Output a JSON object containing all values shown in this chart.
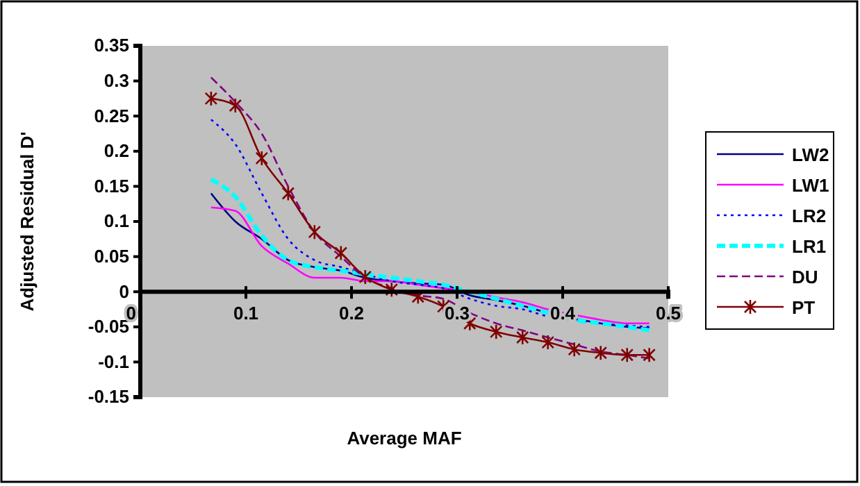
{
  "chart_data": {
    "type": "line",
    "xlabel": "Average MAF",
    "ylabel": "Adjusted Residual D'",
    "x": [
      0.067,
      0.09,
      0.115,
      0.14,
      0.165,
      0.19,
      0.213,
      0.238,
      0.263,
      0.287,
      0.312,
      0.337,
      0.362,
      0.386,
      0.411,
      0.436,
      0.461,
      0.482
    ],
    "xlim": [
      0,
      0.5
    ],
    "xticks": [
      0,
      0.1,
      0.2,
      0.3,
      0.4,
      0.5
    ],
    "ylim": [
      -0.15,
      0.35
    ],
    "yticks": [
      -0.15,
      -0.1,
      -0.05,
      0,
      0.05,
      0.1,
      0.15,
      0.2,
      0.25,
      0.3,
      0.35
    ],
    "grid": false,
    "legend": "right",
    "series": [
      {
        "name": "LW2",
        "color": "#000080",
        "line_style": "solid",
        "marker": "none",
        "values": [
          0.14,
          0.1,
          0.075,
          0.045,
          0.035,
          0.03,
          0.02,
          0.015,
          0.012,
          0.01,
          -0.005,
          -0.012,
          -0.02,
          -0.03,
          -0.038,
          -0.045,
          -0.05,
          -0.052
        ]
      },
      {
        "name": "LW1",
        "color": "#ff00ff",
        "line_style": "solid",
        "marker": "none",
        "values": [
          0.12,
          0.115,
          0.065,
          0.04,
          0.02,
          0.02,
          0.015,
          0.015,
          0.01,
          0.005,
          0,
          -0.008,
          -0.015,
          -0.025,
          -0.033,
          -0.04,
          -0.045,
          -0.045
        ]
      },
      {
        "name": "LR2",
        "color": "#0000ff",
        "line_style": "dotted",
        "marker": "none",
        "values": [
          0.245,
          0.21,
          0.14,
          0.075,
          0.045,
          0.035,
          0.025,
          0.015,
          0.01,
          0.005,
          -0.01,
          -0.02,
          -0.025,
          -0.035,
          -0.04,
          -0.045,
          -0.048,
          -0.05
        ]
      },
      {
        "name": "LR1",
        "color": "#00ffff",
        "line_style": "dashed",
        "marker": "none",
        "values": [
          0.16,
          0.135,
          0.08,
          0.045,
          0.035,
          0.03,
          0.025,
          0.02,
          0.015,
          0.01,
          0,
          -0.01,
          -0.02,
          -0.03,
          -0.04,
          -0.045,
          -0.05,
          -0.055
        ]
      },
      {
        "name": "DU",
        "color": "#800080",
        "line_style": "dashed",
        "marker": "none",
        "values": [
          0.305,
          0.27,
          0.225,
          0.15,
          0.085,
          0.05,
          0.02,
          0.005,
          -0.005,
          -0.01,
          -0.03,
          -0.045,
          -0.055,
          -0.065,
          -0.075,
          -0.085,
          -0.09,
          -0.095
        ]
      },
      {
        "name": "PT",
        "color": "#800000",
        "line_style": "solid",
        "marker": "cross",
        "values": [
          0.275,
          0.265,
          0.19,
          0.14,
          0.085,
          0.055,
          0.021,
          0.003,
          -0.007,
          -0.021,
          -0.045,
          -0.057,
          -0.065,
          -0.072,
          -0.082,
          -0.087,
          -0.09,
          -0.09
        ]
      }
    ]
  }
}
